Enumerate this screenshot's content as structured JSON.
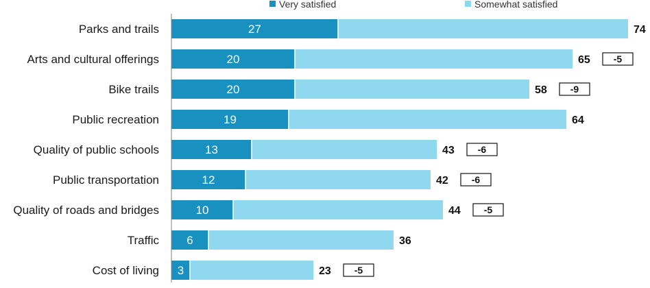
{
  "chart_data": {
    "type": "bar",
    "orientation": "horizontal",
    "stacked": true,
    "legend": {
      "placement": "top",
      "entries": [
        "Very satisfied",
        "Somewhat satisfied"
      ]
    },
    "categories": [
      "Parks and trails",
      "Arts and cultural offerings",
      "Bike trails",
      "Public recreation",
      "Quality of public schools",
      "Public transportation",
      "Quality of roads and bridges",
      "Traffic",
      "Cost of living"
    ],
    "series": [
      {
        "name": "Very satisfied",
        "color": "#1891c0",
        "values": [
          27,
          20,
          20,
          19,
          13,
          12,
          10,
          6,
          3
        ]
      },
      {
        "name": "Somewhat satisfied",
        "color": "#8fd8ef",
        "values": [
          47,
          45,
          38,
          45,
          30,
          30,
          34,
          30,
          20
        ]
      }
    ],
    "totals": [
      74,
      65,
      58,
      64,
      43,
      42,
      44,
      36,
      23
    ],
    "changes": [
      "",
      "-5",
      "-9",
      "",
      "-6",
      "-6",
      "-5",
      "",
      "-5"
    ],
    "xlim": [
      0,
      80
    ],
    "grid": false
  }
}
